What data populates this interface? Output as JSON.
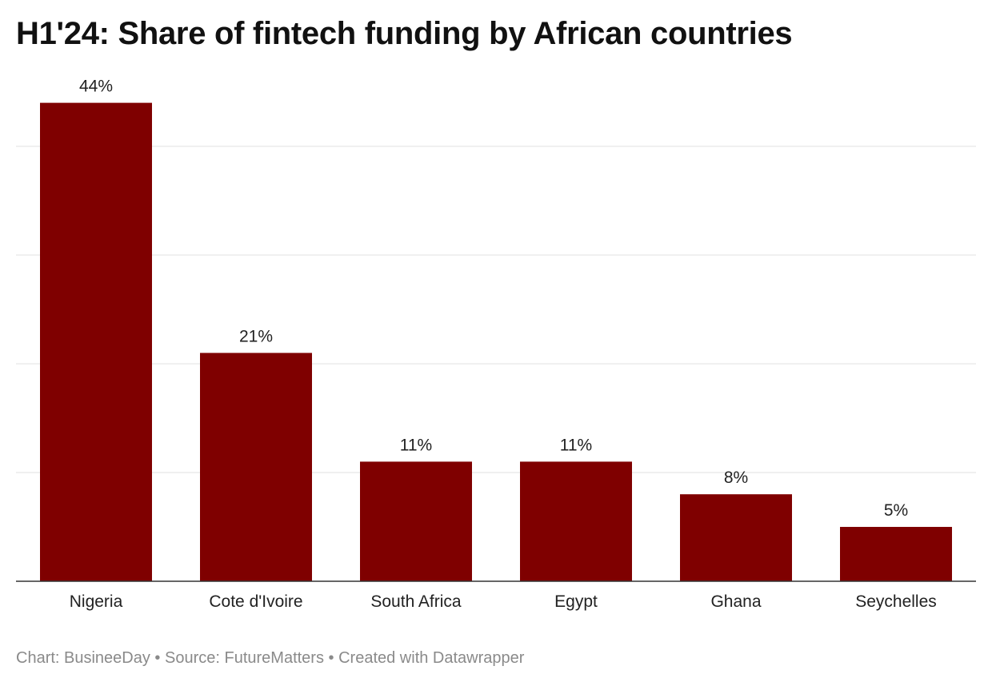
{
  "title": "H1'24: Share of fintech funding by African countries",
  "footer": {
    "chart_credit": "Chart: BusineeDay",
    "separator": " • ",
    "source": "Source: FutureMatters",
    "created": "Created with Datawrapper"
  },
  "colors": {
    "bar": "#7f0000",
    "grid": "#e0e0e0",
    "axis": "#333333"
  },
  "chart_data": {
    "type": "bar",
    "title": "H1'24: Share of fintech funding by African countries",
    "categories": [
      "Nigeria",
      "Cote d'Ivoire",
      "South Africa",
      "Egypt",
      "Ghana",
      "Seychelles"
    ],
    "values": [
      44,
      21,
      11,
      11,
      8,
      5
    ],
    "value_labels": [
      "44%",
      "21%",
      "11%",
      "11%",
      "8%",
      "5%"
    ],
    "xlabel": "",
    "ylabel": "",
    "ylim": [
      0,
      40
    ],
    "yticks": [
      0,
      10,
      20,
      30,
      40
    ],
    "grid": true,
    "legend": "none"
  }
}
